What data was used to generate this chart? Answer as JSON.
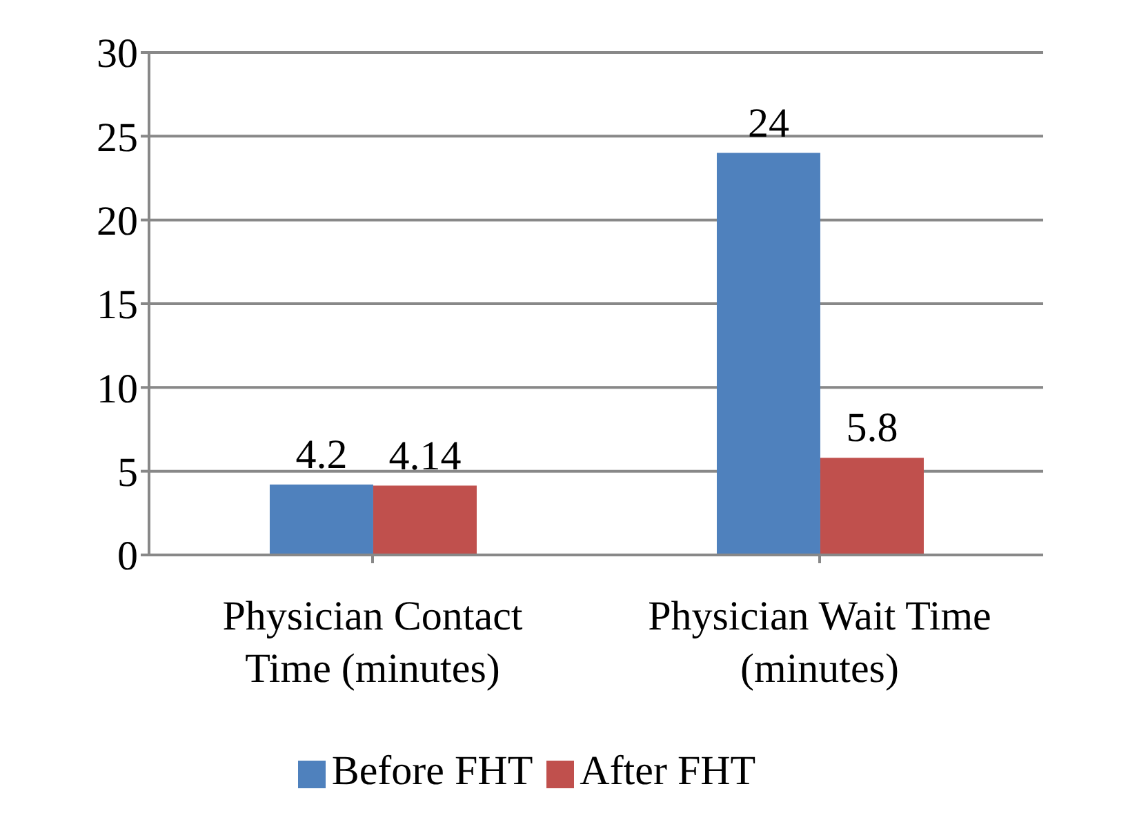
{
  "chart_data": {
    "type": "bar",
    "categories": [
      "Physician Contact Time (minutes)",
      "Physician Wait Time (minutes)"
    ],
    "series": [
      {
        "name": "Before FHT",
        "color": "#4f81bd",
        "values": [
          4.2,
          24
        ]
      },
      {
        "name": "After FHT",
        "color": "#c0504d",
        "values": [
          4.14,
          5.8
        ]
      }
    ],
    "ylim": [
      0,
      30
    ],
    "yticks": [
      0,
      5,
      10,
      15,
      20,
      25,
      30
    ],
    "grid": "y",
    "legend": "bottom",
    "data_labels": true
  }
}
